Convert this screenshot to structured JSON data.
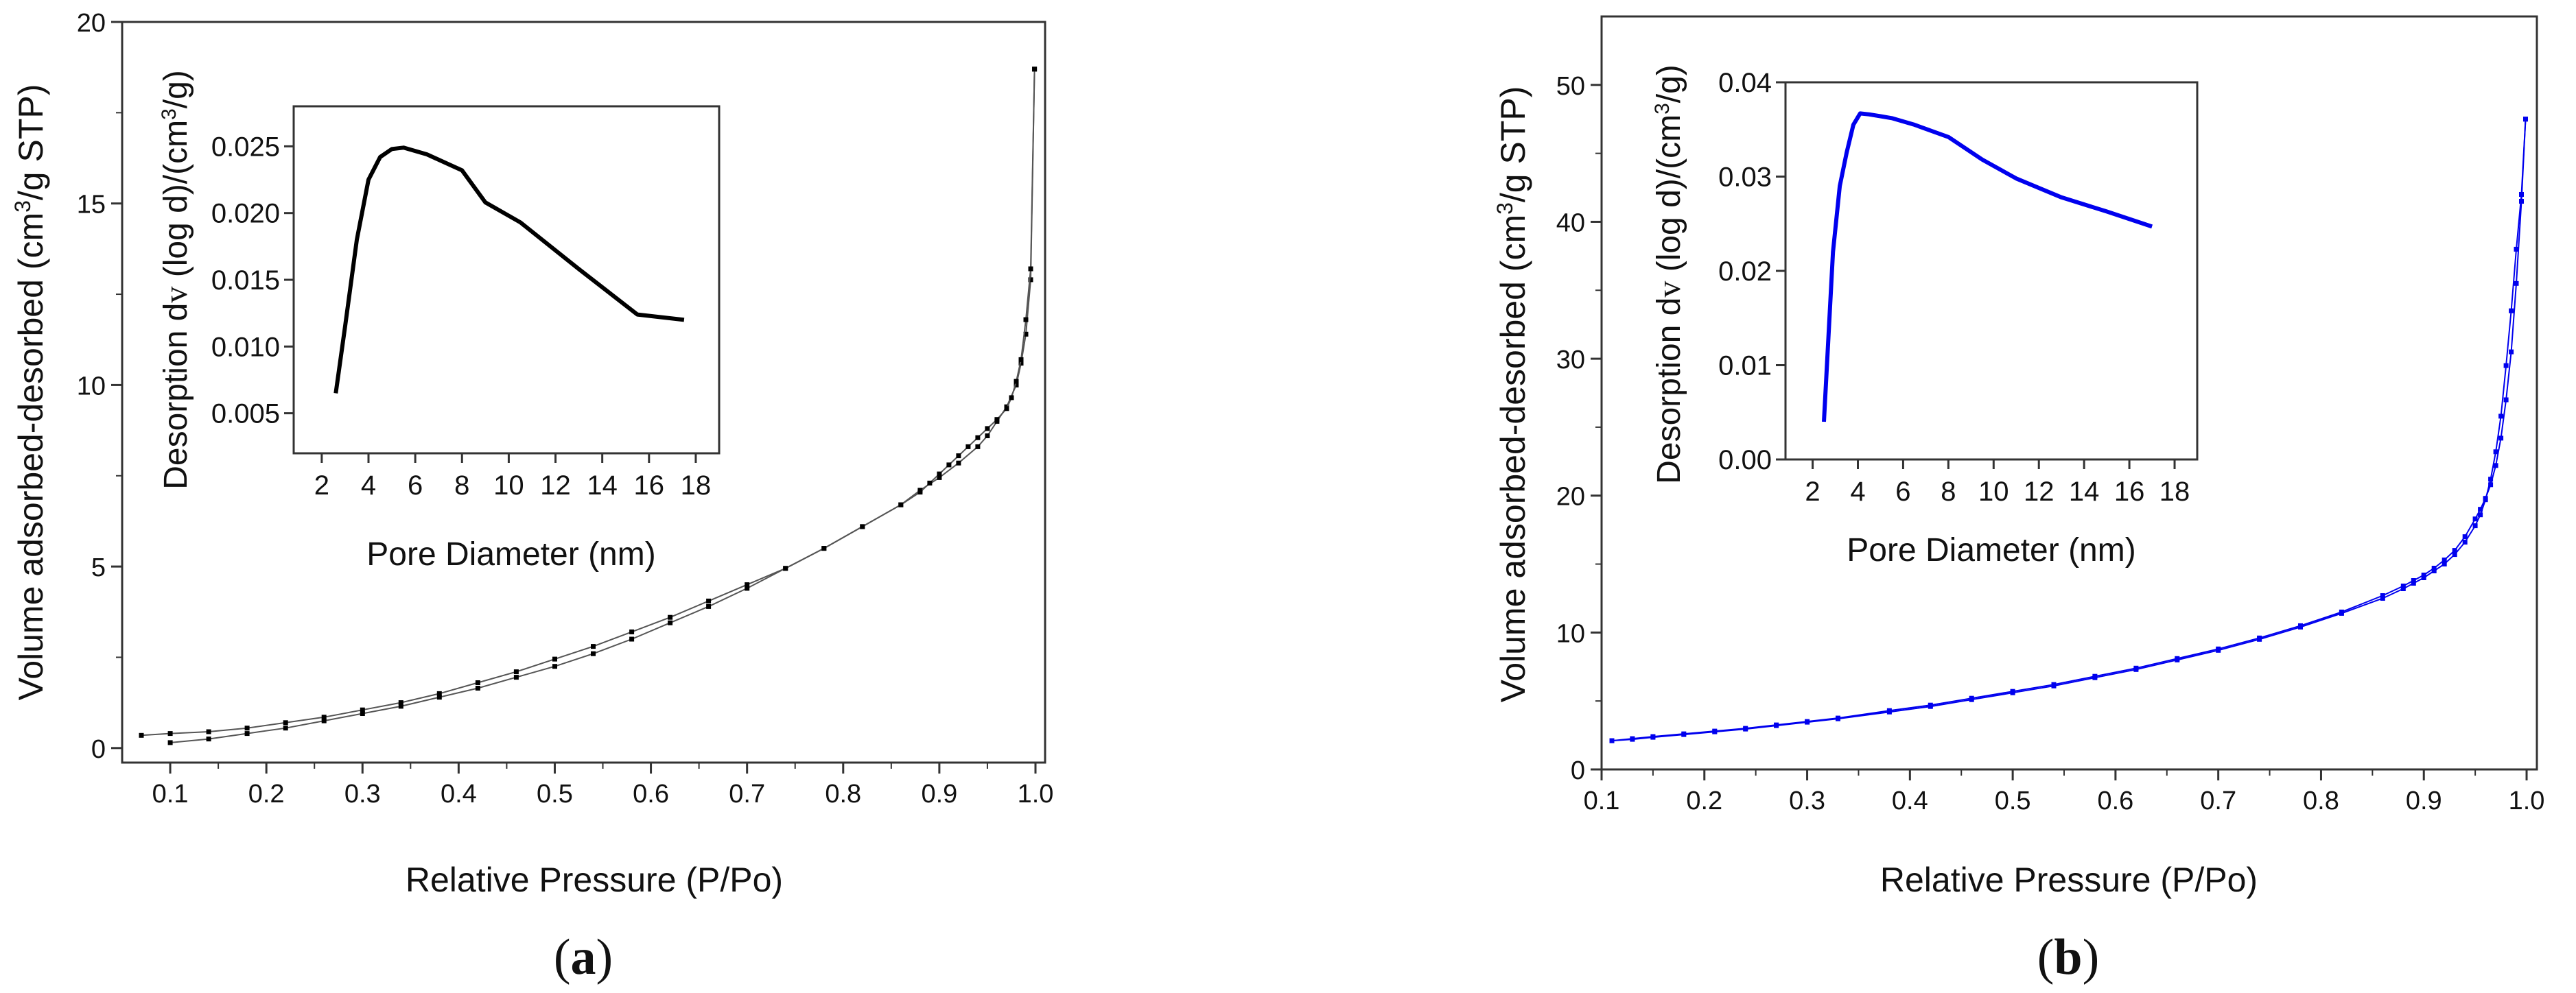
{
  "panels": [
    {
      "label_open": "(",
      "label_letter": "a",
      "label_close": ")",
      "ylabel_pre": "Volume adsorbed-desorbed (cm",
      "ylabel_sup": "3",
      "ylabel_post": "/g STP)",
      "xlabel": "Relative Pressure (P/Po)",
      "inset_ylabel_parts": [
        "Desorption d",
        "v",
        " (log d)/(cm",
        "3",
        "/g)"
      ],
      "inset_xlabel": "Pore Diameter (nm)"
    },
    {
      "label_open": "(",
      "label_letter": "b",
      "label_close": ")",
      "ylabel_pre": "Volume adsorbed-desorbed (cm",
      "ylabel_sup": "3",
      "ylabel_post": "/g STP)",
      "xlabel": "Relative Pressure (P/Po)",
      "inset_ylabel_parts": [
        "Desorption d",
        "v",
        " (log d)/(cm",
        "3",
        "/g)"
      ],
      "inset_xlabel": "Pore Diameter (nm)"
    }
  ],
  "chart_data": [
    {
      "type": "line",
      "panel": "a",
      "color": "#000000",
      "xlabel": "Relative Pressure (P/Po)",
      "ylabel": "Volume adsorbed-desorbed (cm3/g STP)",
      "xlim": [
        0.05,
        1.01
      ],
      "ylim": [
        -0.4,
        20
      ],
      "xticks": [
        "0.1",
        "0.2",
        "0.3",
        "0.4",
        "0.5",
        "0.6",
        "0.7",
        "0.8",
        "0.9",
        "1.0"
      ],
      "yticks": [
        "0",
        "5",
        "10",
        "15",
        "20"
      ],
      "series": [
        {
          "x": [
            0.1,
            0.14,
            0.18,
            0.22,
            0.26,
            0.3,
            0.34,
            0.38,
            0.42,
            0.46,
            0.5,
            0.54,
            0.58,
            0.62,
            0.66,
            0.7,
            0.74,
            0.78,
            0.82,
            0.86,
            0.88,
            0.9,
            0.92,
            0.94,
            0.95,
            0.96,
            0.97,
            0.98,
            0.985,
            0.99,
            0.995,
            0.999
          ],
          "y": [
            0.15,
            0.25,
            0.4,
            0.55,
            0.75,
            0.95,
            1.15,
            1.4,
            1.65,
            1.95,
            2.25,
            2.6,
            3.0,
            3.45,
            3.9,
            4.4,
            4.95,
            5.5,
            6.1,
            6.7,
            7.1,
            7.45,
            7.85,
            8.3,
            8.6,
            9.0,
            9.4,
            10.0,
            10.6,
            11.4,
            12.9,
            18.7
          ]
        },
        {
          "x": [
            0.999,
            0.995,
            0.99,
            0.985,
            0.98,
            0.975,
            0.97,
            0.96,
            0.95,
            0.94,
            0.93,
            0.92,
            0.91,
            0.9,
            0.89,
            0.88,
            0.86,
            0.82,
            0.78,
            0.74,
            0.7,
            0.66,
            0.62,
            0.58,
            0.54,
            0.5,
            0.46,
            0.42,
            0.38,
            0.34,
            0.3,
            0.26,
            0.22,
            0.18,
            0.14,
            0.1,
            0.07
          ],
          "y": [
            18.7,
            13.2,
            11.8,
            10.7,
            10.1,
            9.65,
            9.35,
            9.05,
            8.8,
            8.55,
            8.3,
            8.05,
            7.8,
            7.55,
            7.3,
            7.05,
            6.7,
            6.1,
            5.5,
            4.95,
            4.5,
            4.05,
            3.6,
            3.2,
            2.8,
            2.45,
            2.1,
            1.8,
            1.5,
            1.25,
            1.05,
            0.85,
            0.7,
            0.55,
            0.45,
            0.4,
            0.35
          ]
        }
      ],
      "inset": {
        "type": "line",
        "xlabel": "Pore Diameter (nm)",
        "ylabel": "Desorption dv (log d)/(cm3/g)",
        "xlim": [
          0.8,
          19
        ],
        "ylim": [
          0.002,
          0.028
        ],
        "xticks": [
          "2",
          "4",
          "6",
          "8",
          "10",
          "12",
          "14",
          "16",
          "18"
        ],
        "yticks": [
          "0.005",
          "0.010",
          "0.015",
          "0.020",
          "0.025"
        ],
        "x": [
          2.6,
          3.0,
          3.5,
          4.0,
          4.5,
          5.0,
          5.5,
          6.5,
          7.5,
          8.0,
          9.0,
          10.5,
          13.0,
          15.5,
          17.5
        ],
        "y": [
          0.0065,
          0.0115,
          0.018,
          0.0225,
          0.0242,
          0.0248,
          0.0249,
          0.0244,
          0.0236,
          0.0232,
          0.0208,
          0.0193,
          0.0158,
          0.0124,
          0.012
        ]
      }
    },
    {
      "type": "line",
      "panel": "b",
      "color": "#0000ee",
      "xlabel": "Relative Pressure (P/Po)",
      "ylabel": "Volume adsorbed-desorbed (cm3/g STP)",
      "xlim": [
        0.1,
        1.01
      ],
      "ylim": [
        0,
        55
      ],
      "xticks": [
        "0.1",
        "0.2",
        "0.3",
        "0.4",
        "0.5",
        "0.6",
        "0.7",
        "0.8",
        "0.9",
        "1.0"
      ],
      "yticks": [
        "0",
        "10",
        "20",
        "30",
        "40",
        "50"
      ],
      "series": [
        {
          "x": [
            0.11,
            0.13,
            0.15,
            0.18,
            0.21,
            0.24,
            0.27,
            0.3,
            0.33,
            0.38,
            0.42,
            0.46,
            0.5,
            0.54,
            0.58,
            0.62,
            0.66,
            0.7,
            0.74,
            0.78,
            0.82,
            0.86,
            0.88,
            0.89,
            0.9,
            0.91,
            0.92,
            0.93,
            0.94,
            0.95,
            0.955,
            0.96,
            0.965,
            0.97,
            0.975,
            0.98,
            0.985,
            0.99,
            0.995,
            0.999
          ],
          "y": [
            2.1,
            2.2,
            2.35,
            2.55,
            2.75,
            2.95,
            3.2,
            3.45,
            3.7,
            4.2,
            4.6,
            5.1,
            5.6,
            6.1,
            6.7,
            7.3,
            8.0,
            8.7,
            9.5,
            10.4,
            11.4,
            12.5,
            13.2,
            13.6,
            14.0,
            14.5,
            15.0,
            15.7,
            16.6,
            17.8,
            18.6,
            19.7,
            21.2,
            23.2,
            25.8,
            29.5,
            33.5,
            38.0,
            42.0,
            47.5
          ]
        },
        {
          "x": [
            0.999,
            0.995,
            0.99,
            0.985,
            0.98,
            0.975,
            0.97,
            0.965,
            0.96,
            0.955,
            0.95,
            0.94,
            0.93,
            0.92,
            0.91,
            0.9,
            0.89,
            0.88,
            0.86,
            0.82,
            0.78,
            0.74,
            0.7,
            0.66,
            0.62,
            0.58,
            0.54,
            0.5,
            0.46,
            0.42,
            0.38,
            0.33,
            0.3,
            0.27,
            0.24,
            0.21,
            0.18,
            0.15,
            0.13,
            0.11
          ],
          "y": [
            47.5,
            41.5,
            35.5,
            30.5,
            27.0,
            24.2,
            22.2,
            20.8,
            19.8,
            19.0,
            18.3,
            17.0,
            16.0,
            15.3,
            14.7,
            14.2,
            13.8,
            13.4,
            12.7,
            11.5,
            10.5,
            9.6,
            8.8,
            8.1,
            7.4,
            6.8,
            6.2,
            5.7,
            5.2,
            4.7,
            4.3,
            3.75,
            3.5,
            3.25,
            3.0,
            2.8,
            2.6,
            2.4,
            2.25,
            2.1
          ]
        }
      ],
      "inset": {
        "type": "line",
        "xlabel": "Pore Diameter (nm)",
        "ylabel": "Desorption dv (log d)/(cm3/g)",
        "xlim": [
          0.8,
          19
        ],
        "ylim": [
          0,
          0.04
        ],
        "xticks": [
          "2",
          "4",
          "6",
          "8",
          "10",
          "12",
          "14",
          "16",
          "18"
        ],
        "yticks": [
          "0.00",
          "0.01",
          "0.02",
          "0.03",
          "0.04"
        ],
        "x": [
          2.5,
          2.9,
          3.2,
          3.5,
          3.8,
          4.1,
          4.5,
          5.0,
          5.5,
          6.5,
          8.0,
          9.5,
          11.0,
          13.0,
          15.0,
          17.0
        ],
        "y": [
          0.004,
          0.022,
          0.029,
          0.0325,
          0.0355,
          0.0367,
          0.0366,
          0.0364,
          0.0362,
          0.0355,
          0.0342,
          0.0318,
          0.0298,
          0.0278,
          0.0263,
          0.0247
        ]
      }
    }
  ]
}
